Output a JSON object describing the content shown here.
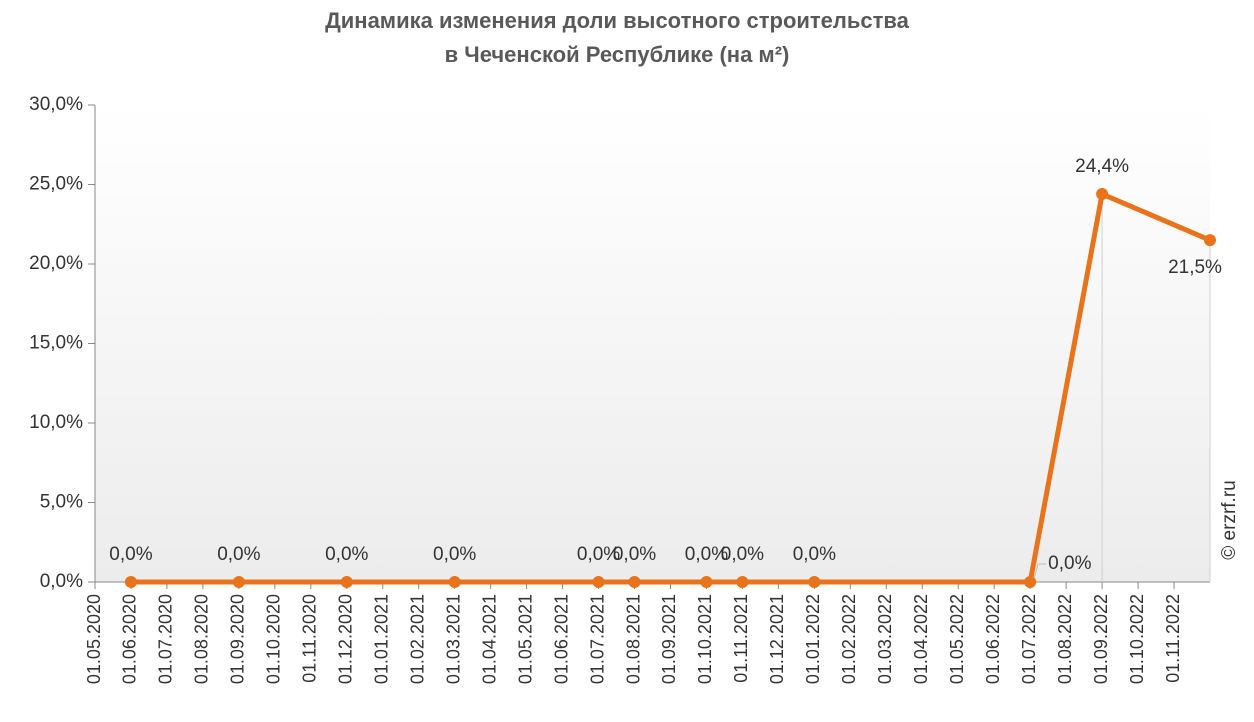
{
  "chart_data": {
    "type": "line",
    "title": [
      "Динамика изменения доли высотного строительства",
      "в Чеченской Республике (на м²)"
    ],
    "watermark": "© erzrf.ru",
    "xticks": [
      "01.05.2020",
      "01.06.2020",
      "01.07.2020",
      "01.08.2020",
      "01.09.2020",
      "01.10.2020",
      "01.11.2020",
      "01.12.2020",
      "01.01.2021",
      "01.02.2021",
      "01.03.2021",
      "01.04.2021",
      "01.05.2021",
      "01.06.2021",
      "01.07.2021",
      "01.08.2021",
      "01.09.2021",
      "01.10.2021",
      "01.11.2021",
      "01.12.2021",
      "01.01.2022",
      "01.02.2022",
      "01.03.2022",
      "01.04.2022",
      "01.05.2022",
      "01.06.2022",
      "01.07.2022",
      "01.08.2022",
      "01.09.2022",
      "01.10.2022",
      "01.11.2022"
    ],
    "xlim": [
      "01.05.2020",
      "01.12.2022"
    ],
    "x": [
      "01.06.2020",
      "01.09.2020",
      "01.12.2020",
      "01.03.2021",
      "01.07.2021",
      "01.08.2021",
      "01.10.2021",
      "01.11.2021",
      "01.01.2022",
      "01.07.2022",
      "01.09.2022",
      "01.12.2022"
    ],
    "series": [
      {
        "color": "#e8731a",
        "values": [
          0,
          0,
          0,
          0,
          0,
          0,
          0,
          0,
          0,
          0,
          24.4,
          21.5
        ],
        "value_labels": [
          "0,0%",
          "0,0%",
          "0,0%",
          "0,0%",
          "0,0%",
          "0,0%",
          "0,0%",
          "0,0%",
          "0,0%",
          "0,0%",
          "24,4%",
          "21,5%"
        ]
      }
    ],
    "ylim": [
      0,
      30
    ],
    "yticks": [
      {
        "value": 0,
        "label": "0,0%"
      },
      {
        "value": 5,
        "label": "5,0%"
      },
      {
        "value": 10,
        "label": "10,0%"
      },
      {
        "value": 15,
        "label": "15,0%"
      },
      {
        "value": 20,
        "label": "20,0%"
      },
      {
        "value": 25,
        "label": "25,0%"
      },
      {
        "value": 30,
        "label": "30,0%"
      }
    ]
  }
}
